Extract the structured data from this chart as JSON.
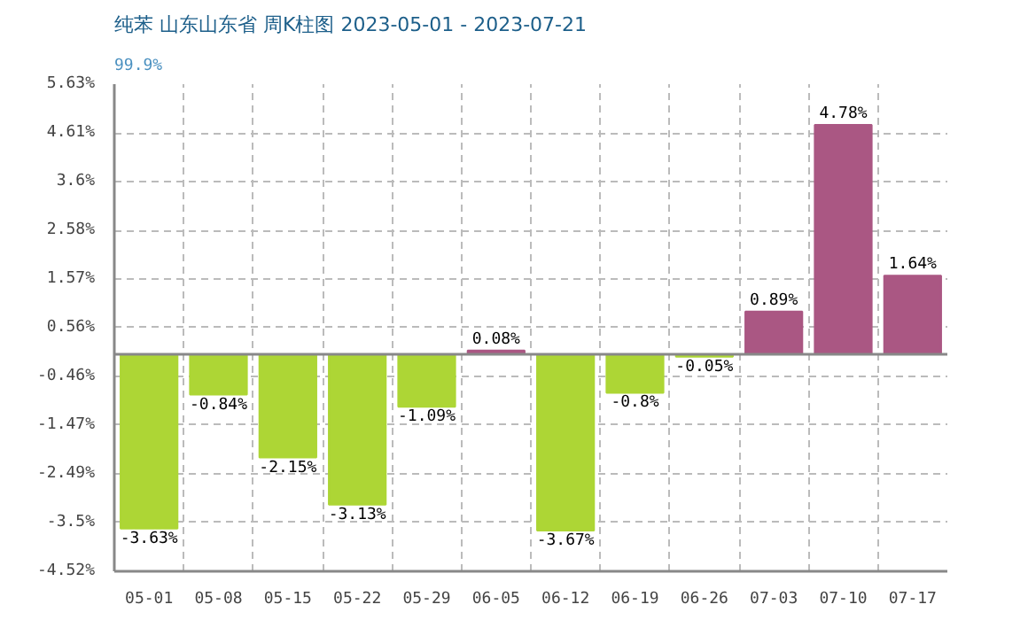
{
  "chart_data": {
    "type": "bar",
    "title": "纯苯 山东山东省 周K柱图 2023-05-01 - 2023-07-21",
    "subtitle": "99.9%",
    "categories": [
      "05-01",
      "05-08",
      "05-15",
      "05-22",
      "05-29",
      "06-05",
      "06-12",
      "06-19",
      "06-26",
      "07-03",
      "07-10",
      "07-17"
    ],
    "values": [
      -3.63,
      -0.84,
      -2.15,
      -3.13,
      -1.09,
      0.08,
      -3.67,
      -0.8,
      -0.05,
      0.89,
      4.78,
      1.64
    ],
    "colors": [
      "#add635",
      "#add635",
      "#add635",
      "#add635",
      "#add635",
      "#aa5783",
      "#add635",
      "#add635",
      "#add635",
      "#aa5783",
      "#aa5783",
      "#aa5783"
    ],
    "value_labels": [
      "-3.63%",
      "-0.84%",
      "-2.15%",
      "-3.13%",
      "-1.09%",
      "0.08%",
      "-3.67%",
      "-0.8%",
      "-0.05%",
      "0.89%",
      "4.78%",
      "1.64%"
    ],
    "ylim": [
      -4.52,
      5.63
    ],
    "yticks": [
      {
        "value": 5.63,
        "label": "5.63%"
      },
      {
        "value": 4.61,
        "label": "4.61%"
      },
      {
        "value": 3.6,
        "label": "3.6%"
      },
      {
        "value": 2.58,
        "label": "2.58%"
      },
      {
        "value": 1.57,
        "label": "1.57%"
      },
      {
        "value": 0.56,
        "label": "0.56%"
      },
      {
        "value": -0.46,
        "label": "-0.46%"
      },
      {
        "value": -1.47,
        "label": "-1.47%"
      },
      {
        "value": -2.49,
        "label": "-2.49%"
      },
      {
        "value": -3.5,
        "label": "-3.5%"
      },
      {
        "value": -4.52,
        "label": "-4.52%"
      }
    ],
    "ref_lines": [
      {
        "axis": "y",
        "value": 0,
        "color": "#888888"
      }
    ],
    "grid": true
  }
}
